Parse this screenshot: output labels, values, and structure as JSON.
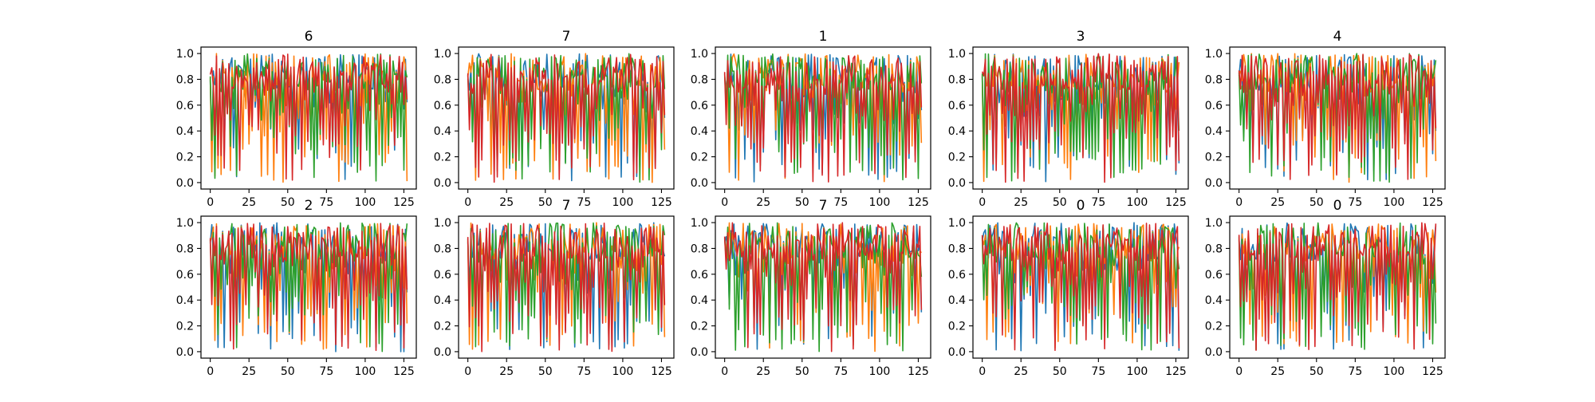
{
  "figure": {
    "background": "#ffffff"
  },
  "chart_data": [
    {
      "type": "line",
      "title": "6",
      "xlim": [
        -6,
        133
      ],
      "ylim": [
        -0.05,
        1.05
      ],
      "xticks": [
        0,
        25,
        50,
        75,
        100,
        125
      ],
      "yticks": [
        0.0,
        0.2,
        0.4,
        0.6,
        0.8,
        1.0
      ],
      "grid": false,
      "seed": 11,
      "colors": [
        "#1f77b4",
        "#ff7f0e",
        "#2ca02c",
        "#d62728"
      ],
      "n_points": 128,
      "series_count": 4
    },
    {
      "type": "line",
      "title": "7",
      "xlim": [
        -6,
        133
      ],
      "ylim": [
        -0.05,
        1.05
      ],
      "xticks": [
        0,
        25,
        50,
        75,
        100,
        125
      ],
      "yticks": [
        0.0,
        0.2,
        0.4,
        0.6,
        0.8,
        1.0
      ],
      "grid": false,
      "seed": 23,
      "colors": [
        "#1f77b4",
        "#ff7f0e",
        "#2ca02c",
        "#d62728"
      ],
      "n_points": 128,
      "series_count": 4
    },
    {
      "type": "line",
      "title": "1",
      "xlim": [
        -6,
        133
      ],
      "ylim": [
        -0.05,
        1.05
      ],
      "xticks": [
        0,
        25,
        50,
        75,
        100,
        125
      ],
      "yticks": [
        0.0,
        0.2,
        0.4,
        0.6,
        0.8,
        1.0
      ],
      "grid": false,
      "seed": 37,
      "colors": [
        "#1f77b4",
        "#ff7f0e",
        "#2ca02c",
        "#d62728"
      ],
      "n_points": 128,
      "series_count": 4
    },
    {
      "type": "line",
      "title": "3",
      "xlim": [
        -6,
        133
      ],
      "ylim": [
        -0.05,
        1.05
      ],
      "xticks": [
        0,
        25,
        50,
        75,
        100,
        125
      ],
      "yticks": [
        0.0,
        0.2,
        0.4,
        0.6,
        0.8,
        1.0
      ],
      "grid": false,
      "seed": 41,
      "colors": [
        "#1f77b4",
        "#ff7f0e",
        "#2ca02c",
        "#d62728"
      ],
      "n_points": 128,
      "series_count": 4
    },
    {
      "type": "line",
      "title": "4",
      "xlim": [
        -6,
        133
      ],
      "ylim": [
        -0.05,
        1.05
      ],
      "xticks": [
        0,
        25,
        50,
        75,
        100,
        125
      ],
      "yticks": [
        0.0,
        0.2,
        0.4,
        0.6,
        0.8,
        1.0
      ],
      "grid": false,
      "seed": 53,
      "colors": [
        "#1f77b4",
        "#ff7f0e",
        "#2ca02c",
        "#d62728"
      ],
      "n_points": 128,
      "series_count": 4
    },
    {
      "type": "line",
      "title": "2",
      "xlim": [
        -6,
        133
      ],
      "ylim": [
        -0.05,
        1.05
      ],
      "xticks": [
        0,
        25,
        50,
        75,
        100,
        125
      ],
      "yticks": [
        0.0,
        0.2,
        0.4,
        0.6,
        0.8,
        1.0
      ],
      "grid": false,
      "seed": 67,
      "colors": [
        "#1f77b4",
        "#ff7f0e",
        "#2ca02c",
        "#d62728"
      ],
      "n_points": 128,
      "series_count": 4
    },
    {
      "type": "line",
      "title": "7",
      "xlim": [
        -6,
        133
      ],
      "ylim": [
        -0.05,
        1.05
      ],
      "xticks": [
        0,
        25,
        50,
        75,
        100,
        125
      ],
      "yticks": [
        0.0,
        0.2,
        0.4,
        0.6,
        0.8,
        1.0
      ],
      "grid": false,
      "seed": 79,
      "colors": [
        "#1f77b4",
        "#ff7f0e",
        "#2ca02c",
        "#d62728"
      ],
      "n_points": 128,
      "series_count": 4
    },
    {
      "type": "line",
      "title": "7",
      "xlim": [
        -6,
        133
      ],
      "ylim": [
        -0.05,
        1.05
      ],
      "xticks": [
        0,
        25,
        50,
        75,
        100,
        125
      ],
      "yticks": [
        0.0,
        0.2,
        0.4,
        0.6,
        0.8,
        1.0
      ],
      "grid": false,
      "seed": 83,
      "colors": [
        "#1f77b4",
        "#ff7f0e",
        "#2ca02c",
        "#d62728"
      ],
      "n_points": 128,
      "series_count": 4
    },
    {
      "type": "line",
      "title": "0",
      "xlim": [
        -6,
        133
      ],
      "ylim": [
        -0.05,
        1.05
      ],
      "xticks": [
        0,
        25,
        50,
        75,
        100,
        125
      ],
      "yticks": [
        0.0,
        0.2,
        0.4,
        0.6,
        0.8,
        1.0
      ],
      "grid": false,
      "seed": 97,
      "colors": [
        "#1f77b4",
        "#ff7f0e",
        "#2ca02c",
        "#d62728"
      ],
      "n_points": 128,
      "series_count": 4
    },
    {
      "type": "line",
      "title": "0",
      "xlim": [
        -6,
        133
      ],
      "ylim": [
        -0.05,
        1.05
      ],
      "xticks": [
        0,
        25,
        50,
        75,
        100,
        125
      ],
      "yticks": [
        0.0,
        0.2,
        0.4,
        0.6,
        0.8,
        1.0
      ],
      "grid": false,
      "seed": 101,
      "colors": [
        "#1f77b4",
        "#ff7f0e",
        "#2ca02c",
        "#d62728"
      ],
      "n_points": 128,
      "series_count": 4
    }
  ]
}
